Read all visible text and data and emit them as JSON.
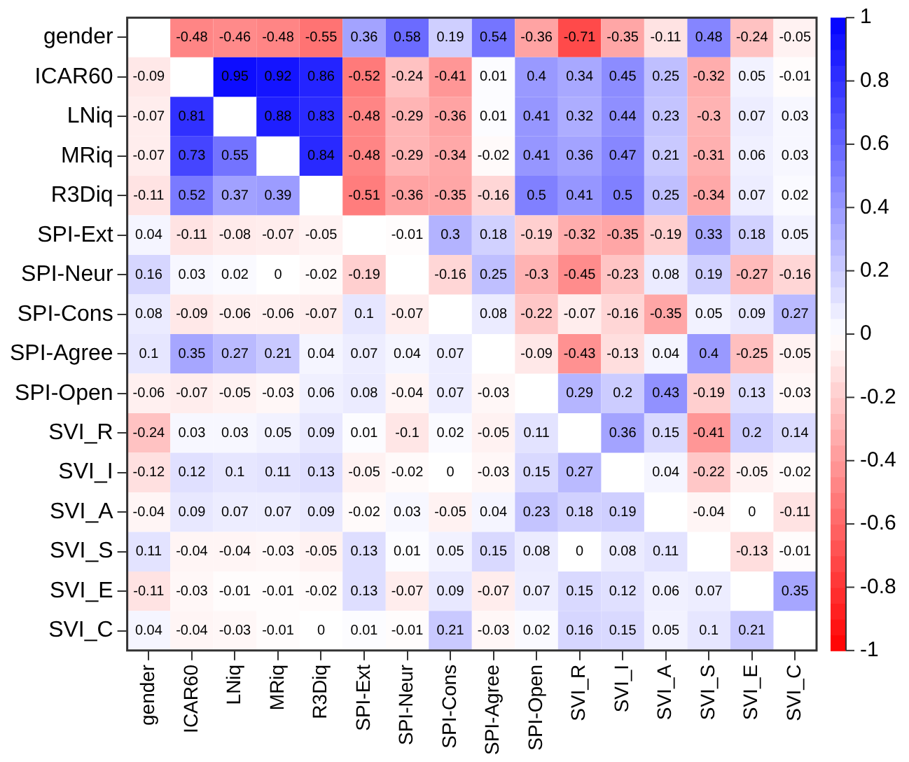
{
  "chart_data": {
    "type": "heatmap",
    "categories": [
      "gender",
      "ICAR60",
      "LNiq",
      "MRiq",
      "R3Diq",
      "SPI-Ext",
      "SPI-Neur",
      "SPI-Cons",
      "SPI-Agree",
      "SPI-Open",
      "SVI_R",
      "SVI_I",
      "SVI_A",
      "SVI_S",
      "SVI_E",
      "SVI_C"
    ],
    "y_categories": [
      "gender",
      "ICAR60",
      "LNiq",
      "MRiq",
      "R3Diq",
      "SPI-Ext",
      "SPI-Neur",
      "SPI-Cons",
      "SPI-Agree",
      "SPI-Open",
      "SVI_R",
      "SVI_I",
      "SVI_A",
      "SVI_S",
      "SVI_E",
      "SVI_C"
    ],
    "cells": [
      [
        null,
        -0.48,
        -0.46,
        -0.48,
        -0.55,
        0.36,
        0.58,
        0.19,
        0.54,
        -0.36,
        -0.71,
        -0.35,
        -0.11,
        0.48,
        -0.24,
        -0.05
      ],
      [
        -0.09,
        null,
        0.95,
        0.92,
        0.86,
        -0.52,
        -0.24,
        -0.41,
        0.01,
        0.4,
        0.34,
        0.45,
        0.25,
        -0.32,
        0.05,
        -0.01
      ],
      [
        -0.07,
        0.81,
        null,
        0.88,
        0.83,
        -0.48,
        -0.29,
        -0.36,
        0.01,
        0.41,
        0.32,
        0.44,
        0.23,
        -0.3,
        0.07,
        0.03
      ],
      [
        -0.07,
        0.73,
        0.55,
        null,
        0.84,
        -0.48,
        -0.29,
        -0.34,
        -0.02,
        0.41,
        0.36,
        0.47,
        0.21,
        -0.31,
        0.06,
        0.03
      ],
      [
        -0.11,
        0.52,
        0.37,
        0.39,
        null,
        -0.51,
        -0.36,
        -0.35,
        -0.16,
        0.5,
        0.41,
        0.5,
        0.25,
        -0.34,
        0.07,
        0.02
      ],
      [
        0.04,
        -0.11,
        -0.08,
        -0.07,
        -0.05,
        null,
        -0.01,
        0.3,
        0.18,
        -0.19,
        -0.32,
        -0.35,
        -0.19,
        0.33,
        0.18,
        0.05
      ],
      [
        0.16,
        0.03,
        0.02,
        0,
        -0.02,
        -0.19,
        null,
        -0.16,
        0.25,
        -0.3,
        -0.45,
        -0.23,
        0.08,
        0.19,
        -0.27,
        -0.16
      ],
      [
        0.08,
        -0.09,
        -0.06,
        -0.06,
        -0.07,
        0.1,
        -0.07,
        null,
        0.08,
        -0.22,
        -0.07,
        -0.16,
        -0.35,
        0.05,
        0.09,
        0.27
      ],
      [
        0.1,
        0.35,
        0.27,
        0.21,
        0.04,
        0.07,
        0.04,
        0.07,
        null,
        -0.09,
        -0.43,
        -0.13,
        0.04,
        0.4,
        -0.25,
        -0.05
      ],
      [
        -0.06,
        -0.07,
        -0.05,
        -0.03,
        0.06,
        0.08,
        -0.04,
        0.07,
        -0.03,
        null,
        0.29,
        0.2,
        0.43,
        -0.19,
        0.13,
        -0.03
      ],
      [
        -0.24,
        0.03,
        0.03,
        0.05,
        0.09,
        0.01,
        -0.1,
        0.02,
        -0.05,
        0.11,
        null,
        0.36,
        0.15,
        -0.41,
        0.2,
        0.14
      ],
      [
        -0.12,
        0.12,
        0.1,
        0.11,
        0.13,
        -0.05,
        -0.02,
        0,
        -0.03,
        0.15,
        0.27,
        null,
        0.04,
        -0.22,
        -0.05,
        -0.02
      ],
      [
        -0.04,
        0.09,
        0.07,
        0.07,
        0.09,
        -0.02,
        0.03,
        -0.05,
        0.04,
        0.23,
        0.18,
        0.19,
        null,
        -0.04,
        0,
        -0.11
      ],
      [
        0.11,
        -0.04,
        -0.04,
        -0.03,
        -0.05,
        0.13,
        0.01,
        0.05,
        0.15,
        0.08,
        0,
        0.08,
        0.11,
        null,
        -0.13,
        -0.01
      ],
      [
        -0.11,
        -0.03,
        -0.01,
        -0.01,
        -0.02,
        0.13,
        -0.07,
        0.09,
        -0.07,
        0.07,
        0.15,
        0.12,
        0.06,
        0.07,
        null,
        0.35
      ],
      [
        0.04,
        -0.04,
        -0.03,
        -0.01,
        0,
        0.01,
        -0.01,
        0.21,
        -0.03,
        0.02,
        0.16,
        0.15,
        0.05,
        0.1,
        0.21,
        null
      ]
    ],
    "clim": [
      -1,
      1
    ],
    "cticks": [
      1,
      0.8,
      0.6,
      0.4,
      0.2,
      0,
      -0.2,
      -0.4,
      -0.6,
      -0.8,
      -1
    ],
    "data_labels": true
  }
}
